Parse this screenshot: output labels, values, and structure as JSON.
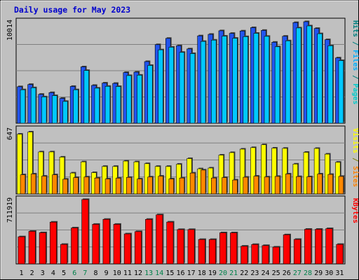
{
  "chart_data": {
    "type": "bar",
    "title": "Daily usage for May 2023",
    "categories": [
      "1",
      "2",
      "3",
      "4",
      "5",
      "6",
      "7",
      "8",
      "9",
      "10",
      "11",
      "12",
      "13",
      "14",
      "15",
      "16",
      "17",
      "18",
      "19",
      "20",
      "21",
      "22",
      "23",
      "24",
      "25",
      "26",
      "27",
      "28",
      "29",
      "30",
      "31"
    ],
    "weekend_days": [
      "6",
      "7",
      "13",
      "14",
      "20",
      "21",
      "27",
      "28"
    ],
    "panels": [
      {
        "axis_label": "10014",
        "ymax": 10014,
        "right_label": [
          {
            "text": "Pages",
            "color": "#00cccc"
          },
          {
            "text": " / ",
            "color": "#008080"
          },
          {
            "text": "Files",
            "color": "#00b0ff"
          },
          {
            "text": " / ",
            "color": "#008080"
          },
          {
            "text": "Hits",
            "color": "#008080"
          }
        ],
        "series": [
          {
            "name": "Hits",
            "color": "#2255ee",
            "values": [
              3600,
              3820,
              2850,
              3020,
              2450,
              3630,
              5560,
              3730,
              3960,
              3930,
              5000,
              5040,
              6080,
              7750,
              8370,
              7650,
              7330,
              8620,
              8770,
              9120,
              8860,
              9100,
              9430,
              9160,
              7990,
              8580,
              9930,
              10014,
              9350,
              8240,
              6440
            ]
          },
          {
            "name": "Files",
            "color": "#00c8ff",
            "values": [
              3300,
              3500,
              2600,
              2720,
              2150,
              3300,
              5200,
              3460,
              3640,
              3620,
              4700,
              4740,
              5700,
              7240,
              7500,
              6990,
              6870,
              8070,
              8200,
              8590,
              8380,
              8540,
              8870,
              8570,
              7540,
              8130,
              9400,
              9600,
              8830,
              7640,
              6180
            ]
          }
        ]
      },
      {
        "axis_label": "647",
        "ymax": 647,
        "right_label": [
          {
            "text": "Sites",
            "color": "#ff8000"
          },
          {
            "text": " / ",
            "color": "#808000"
          },
          {
            "text": "Visits",
            "color": "#ffff00"
          }
        ],
        "series": [
          {
            "name": "Visits",
            "color": "#ffff00",
            "values": [
              600,
              622,
              422,
              422,
              370,
              210,
              322,
              214,
              276,
              276,
              330,
              322,
              304,
              276,
              276,
              298,
              355,
              252,
              260,
              390,
              415,
              450,
              465,
              494,
              460,
              458,
              300,
              418,
              457,
              400,
              318
            ]
          },
          {
            "name": "Sites",
            "color": "#ff8800",
            "values": [
              192,
              200,
              178,
              192,
              148,
              164,
              170,
              160,
              150,
              158,
              166,
              150,
              170,
              178,
              150,
              160,
              210,
              240,
              160,
              164,
              140,
              168,
              178,
              170,
              176,
              200,
              174,
              172,
              200,
              196,
              176
            ]
          }
        ]
      },
      {
        "axis_label": "711919",
        "ymax": 711919,
        "right_label": [
          {
            "text": "KBytes",
            "color": "#ff0000"
          }
        ],
        "series": [
          {
            "name": "KBytes",
            "color": "#ff0000",
            "values": [
              300000,
              360000,
              345000,
              462000,
              216000,
              398000,
              711919,
              438000,
              493000,
              438000,
              332000,
              357000,
              493000,
              543000,
              463000,
              380000,
              380000,
              270000,
              270000,
              344000,
              344000,
              196000,
              215000,
              203000,
              186000,
              322000,
              271000,
              383000,
              383000,
              390000,
              216000
            ]
          }
        ]
      }
    ]
  }
}
